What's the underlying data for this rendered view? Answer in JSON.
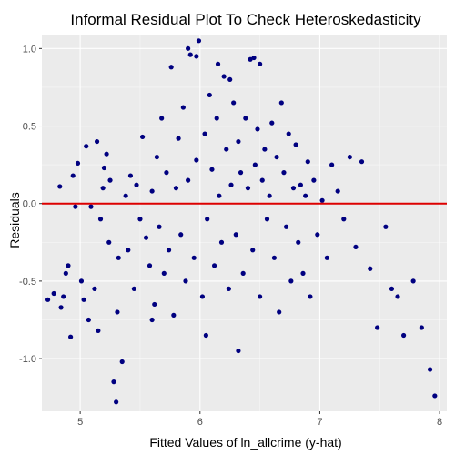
{
  "chart_data": {
    "type": "scatter",
    "title": "Informal Residual Plot To Check Heteroskedasticity",
    "xlabel": "Fitted Values of ln_allcrime (y-hat)",
    "ylabel": "Residuals",
    "xlim": [
      4.68,
      8.06
    ],
    "ylim": [
      -1.34,
      1.09
    ],
    "xticks": [
      5,
      6,
      7,
      8
    ],
    "xtick_labels": [
      "5",
      "6",
      "7",
      "8"
    ],
    "yticks": [
      -1.0,
      -0.5,
      0.0,
      0.5,
      1.0
    ],
    "ytick_labels": [
      "-1.0",
      "-0.5",
      "0.0",
      "0.5",
      "1.0"
    ],
    "grid": true,
    "legend": "none",
    "reference_line": {
      "y": 0,
      "color": "#dd0000"
    },
    "point_color": "#000080",
    "panel_background": "#ebebeb",
    "series": [
      {
        "x": [
          4.73,
          4.78,
          4.83,
          4.84,
          4.86,
          4.88,
          4.9,
          4.92,
          4.94,
          4.96,
          4.98,
          5.01,
          5.03,
          5.05,
          5.07,
          5.09,
          5.12,
          5.14,
          5.15,
          5.17,
          5.19,
          5.2,
          5.22,
          5.24,
          5.25,
          5.28,
          5.3,
          5.31,
          5.32,
          5.35,
          5.38,
          5.4,
          5.42,
          5.45,
          5.47,
          5.5,
          5.52,
          5.55,
          5.58,
          5.6,
          5.62,
          5.64,
          5.66,
          5.68,
          5.7,
          5.72,
          5.74,
          5.76,
          5.78,
          5.8,
          5.82,
          5.84,
          5.86,
          5.88,
          5.9,
          5.92,
          5.95,
          5.97,
          5.99,
          6.02,
          6.04,
          6.06,
          6.08,
          6.1,
          6.12,
          6.14,
          6.16,
          6.18,
          6.2,
          6.22,
          6.24,
          6.26,
          6.28,
          6.3,
          6.32,
          6.34,
          6.36,
          6.38,
          6.4,
          6.42,
          6.44,
          6.46,
          6.48,
          6.5,
          6.52,
          6.54,
          6.56,
          6.58,
          6.6,
          6.62,
          6.64,
          6.66,
          6.68,
          6.7,
          6.72,
          6.74,
          6.76,
          6.78,
          6.8,
          6.82,
          6.84,
          6.86,
          6.88,
          6.9,
          6.92,
          6.95,
          6.98,
          7.02,
          7.06,
          7.1,
          7.15,
          7.2,
          7.25,
          7.3,
          7.35,
          7.42,
          7.48,
          7.55,
          7.6,
          7.65,
          7.7,
          7.78,
          7.85,
          7.92,
          7.96,
          5.9,
          5.97,
          6.15,
          6.25,
          6.45,
          6.5,
          5.6,
          6.05,
          6.32
        ],
        "y": [
          -0.62,
          -0.58,
          0.11,
          -0.67,
          -0.6,
          -0.45,
          -0.4,
          -0.86,
          0.18,
          -0.02,
          0.26,
          -0.5,
          -0.62,
          0.37,
          -0.75,
          -0.02,
          -0.55,
          0.4,
          -0.82,
          -0.1,
          0.1,
          0.23,
          0.32,
          -0.25,
          0.15,
          -1.15,
          -1.28,
          -0.7,
          -0.35,
          -1.02,
          0.05,
          -0.3,
          0.18,
          -0.55,
          0.12,
          -0.1,
          0.43,
          -0.22,
          -0.4,
          0.08,
          -0.65,
          0.3,
          -0.15,
          0.55,
          -0.45,
          0.2,
          -0.3,
          0.88,
          -0.72,
          0.1,
          0.42,
          -0.2,
          0.62,
          -0.5,
          0.15,
          0.96,
          -0.35,
          0.28,
          1.05,
          -0.6,
          0.45,
          -0.1,
          0.7,
          0.22,
          -0.4,
          0.55,
          0.05,
          -0.25,
          0.82,
          0.35,
          -0.55,
          0.12,
          0.65,
          -0.2,
          0.4,
          0.2,
          -0.45,
          0.55,
          0.1,
          0.93,
          -0.3,
          0.25,
          0.48,
          -0.6,
          0.15,
          0.35,
          -0.1,
          0.05,
          0.52,
          -0.35,
          0.3,
          -0.7,
          0.65,
          0.2,
          -0.15,
          0.45,
          -0.5,
          0.1,
          0.38,
          -0.25,
          0.12,
          -0.45,
          0.05,
          0.27,
          -0.6,
          0.15,
          -0.2,
          0.02,
          -0.35,
          0.25,
          0.08,
          -0.1,
          0.3,
          -0.28,
          0.27,
          -0.42,
          -0.8,
          -0.15,
          -0.55,
          -0.6,
          -0.85,
          -0.5,
          -0.8,
          -1.07,
          -1.24,
          1.0,
          0.95,
          0.9,
          0.8,
          0.94,
          0.9,
          -0.75,
          -0.85,
          -0.95
        ]
      }
    ]
  }
}
